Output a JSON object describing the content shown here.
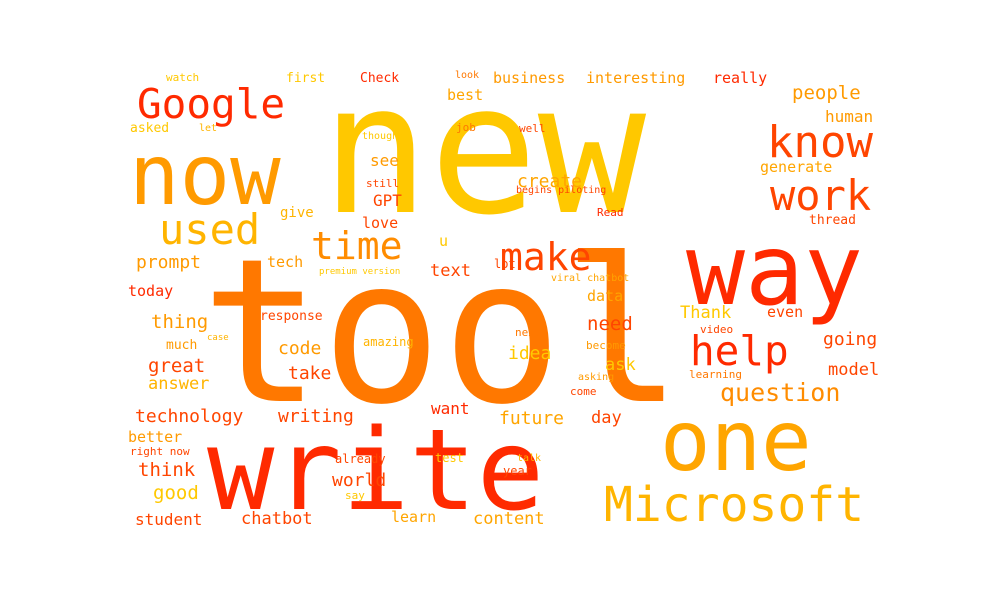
{
  "palette": {
    "gold": "#FFC800",
    "amber": "#FFA500",
    "orange": "#FF7800",
    "red_orange": "#FF4500",
    "red": "#FF2A00"
  },
  "words": [
    {
      "text": "new",
      "color": "#FFC800",
      "weight": 100
    },
    {
      "text": "tool",
      "color": "#FF7800",
      "weight": 96
    },
    {
      "text": "write",
      "color": "#FF2A00",
      "weight": 80
    },
    {
      "text": "way",
      "color": "#FF2A00",
      "weight": 68
    },
    {
      "text": "now",
      "color": "#FF9A00",
      "weight": 60
    },
    {
      "text": "one",
      "color": "#FFA500",
      "weight": 60
    },
    {
      "text": "Microsoft",
      "color": "#FFB400",
      "weight": 40
    },
    {
      "text": "Google",
      "color": "#FF2A00",
      "weight": 36
    },
    {
      "text": "help",
      "color": "#FF2A00",
      "weight": 36
    },
    {
      "text": "used",
      "color": "#FFB400",
      "weight": 35
    },
    {
      "text": "know",
      "color": "#FF4500",
      "weight": 34
    },
    {
      "text": "work",
      "color": "#FF4500",
      "weight": 33
    },
    {
      "text": "make",
      "color": "#FF4500",
      "weight": 32
    },
    {
      "text": "time",
      "color": "#FF8C00",
      "weight": 31
    },
    {
      "text": "question",
      "color": "#FF8C00",
      "weight": 24
    },
    {
      "text": "people",
      "color": "#FF9A00",
      "weight": 19
    },
    {
      "text": "create",
      "color": "#FFA500",
      "weight": 18
    },
    {
      "text": "technology",
      "color": "#FF4500",
      "weight": 18
    },
    {
      "text": "writing",
      "color": "#FF4500",
      "weight": 18
    },
    {
      "text": "future",
      "color": "#FFA500",
      "weight": 18
    },
    {
      "text": "idea",
      "color": "#FFC800",
      "weight": 18
    },
    {
      "text": "great",
      "color": "#FF4500",
      "weight": 18
    },
    {
      "text": "thing",
      "color": "#FF9A00",
      "weight": 18
    },
    {
      "text": "prompt",
      "color": "#FF9A00",
      "weight": 18
    },
    {
      "text": "need",
      "color": "#FF4500",
      "weight": 18
    },
    {
      "text": "code",
      "color": "#FF9A00",
      "weight": 18
    },
    {
      "text": "take",
      "color": "#FF4500",
      "weight": 18
    },
    {
      "text": "think",
      "color": "#FF4500",
      "weight": 18
    },
    {
      "text": "good",
      "color": "#FFC800",
      "weight": 18
    },
    {
      "text": "world",
      "color": "#FF4500",
      "weight": 18
    },
    {
      "text": "chatbot",
      "color": "#FF4500",
      "weight": 18
    },
    {
      "text": "content",
      "color": "#FFA500",
      "weight": 18
    },
    {
      "text": "going",
      "color": "#FF4500",
      "weight": 18
    },
    {
      "text": "Thank",
      "color": "#FFC800",
      "weight": 17
    },
    {
      "text": "human",
      "color": "#FF9A00",
      "weight": 16
    },
    {
      "text": "model",
      "color": "#FF4500",
      "weight": 16
    },
    {
      "text": "ask",
      "color": "#FFC800",
      "weight": 16
    },
    {
      "text": "answer",
      "color": "#FFB400",
      "weight": 16
    },
    {
      "text": "student",
      "color": "#FF4500",
      "weight": 16
    },
    {
      "text": "see",
      "color": "#FF9A00",
      "weight": 16
    },
    {
      "text": "GPT",
      "color": "#FF4500",
      "weight": 16
    },
    {
      "text": "love",
      "color": "#FF4500",
      "weight": 15
    },
    {
      "text": "text",
      "color": "#FF4500",
      "weight": 16
    },
    {
      "text": "data",
      "color": "#FFA500",
      "weight": 15
    },
    {
      "text": "day",
      "color": "#FF4500",
      "weight": 16
    },
    {
      "text": "want",
      "color": "#FF2A00",
      "weight": 15
    },
    {
      "text": "better",
      "color": "#FF9A00",
      "weight": 15
    },
    {
      "text": "learn",
      "color": "#FFA500",
      "weight": 15
    },
    {
      "text": "best",
      "color": "#FFA500",
      "weight": 15
    },
    {
      "text": "even",
      "color": "#FF4500",
      "weight": 14
    },
    {
      "text": "generate",
      "color": "#FFA500",
      "weight": 14
    },
    {
      "text": "business",
      "color": "#FF9A00",
      "weight": 14
    },
    {
      "text": "interesting",
      "color": "#FF9A00",
      "weight": 14
    },
    {
      "text": "really",
      "color": "#FF2A00",
      "weight": 14
    },
    {
      "text": "today",
      "color": "#FF2A00",
      "weight": 14
    },
    {
      "text": "tech",
      "color": "#FF9A00",
      "weight": 14
    },
    {
      "text": "give",
      "color": "#FFB400",
      "weight": 14
    },
    {
      "text": "first",
      "color": "#FFC800",
      "weight": 13
    },
    {
      "text": "asked",
      "color": "#FFC800",
      "weight": 13
    },
    {
      "text": "much",
      "color": "#FF9A00",
      "weight": 13
    },
    {
      "text": "response",
      "color": "#FF4500",
      "weight": 13
    },
    {
      "text": "u",
      "color": "#FFC800",
      "weight": 15
    },
    {
      "text": "lot",
      "color": "#FF4500",
      "weight": 12
    },
    {
      "text": "Check",
      "color": "#FF2A00",
      "weight": 12
    },
    {
      "text": "watch",
      "color": "#FFC800",
      "weight": 11
    },
    {
      "text": "look",
      "color": "#FF7800",
      "weight": 10
    },
    {
      "text": "job",
      "color": "#FF7800",
      "weight": 11
    },
    {
      "text": "well",
      "color": "#FF4500",
      "weight": 11
    },
    {
      "text": "let",
      "color": "#FFB400",
      "weight": 10
    },
    {
      "text": "thought",
      "color": "#FFC800",
      "weight": 10
    },
    {
      "text": "still",
      "color": "#FF4500",
      "weight": 11
    },
    {
      "text": "begins piloting",
      "color": "#FF4500",
      "weight": 10
    },
    {
      "text": "Read",
      "color": "#FF2A00",
      "weight": 11
    },
    {
      "text": "thread",
      "color": "#FF4500",
      "weight": 12
    },
    {
      "text": "premium version",
      "color": "#FFC800",
      "weight": 9
    },
    {
      "text": "viral chatbot",
      "color": "#FFA500",
      "weight": 10
    },
    {
      "text": "video",
      "color": "#FF4500",
      "weight": 11
    },
    {
      "text": "next",
      "color": "#FF7800",
      "weight": 11
    },
    {
      "text": "become",
      "color": "#FF9A00",
      "weight": 11
    },
    {
      "text": "amazing",
      "color": "#FFB400",
      "weight": 12
    },
    {
      "text": "asking",
      "color": "#FF9A00",
      "weight": 10
    },
    {
      "text": "come",
      "color": "#FF4500",
      "weight": 11
    },
    {
      "text": "learning",
      "color": "#FF7800",
      "weight": 11
    },
    {
      "text": "case",
      "color": "#FFB400",
      "weight": 9
    },
    {
      "text": "right now",
      "color": "#FF4500",
      "weight": 11
    },
    {
      "text": "already",
      "color": "#FF4500",
      "weight": 12
    },
    {
      "text": "test",
      "color": "#FFC800",
      "weight": 12
    },
    {
      "text": "talk",
      "color": "#FFB400",
      "weight": 10
    },
    {
      "text": "year",
      "color": "#FF4500",
      "weight": 12
    },
    {
      "text": "say",
      "color": "#FFC800",
      "weight": 11
    }
  ]
}
